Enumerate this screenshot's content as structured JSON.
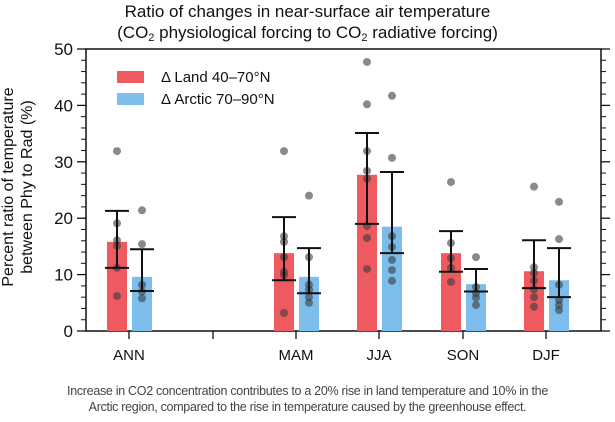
{
  "chart_data": {
    "type": "bar",
    "title_line1": "Ratio of changes in near-surface air temperature",
    "title_line2_parts": [
      "(CO",
      "2",
      " physiological forcing to CO",
      "2",
      " radiative forcing)"
    ],
    "title": "Ratio of changes in near-surface air temperature (CO2 physiological forcing to CO2 radiative forcing)",
    "ylabel_line1": "Percent ratio of temperature",
    "ylabel_line2": "between Phy to Rad (%)",
    "xlabel": "",
    "ylim": [
      0,
      50
    ],
    "yticks": [
      0,
      10,
      20,
      30,
      40,
      50
    ],
    "yminor_step": 2,
    "grid": false,
    "legend_position": "top-left",
    "categories": [
      "ANN",
      "",
      "MAM",
      "JJA",
      "SON",
      "DJF"
    ],
    "series": [
      {
        "name": "Δ Land 40–70°N",
        "color": "#EE5A60",
        "values": [
          15.8,
          null,
          13.8,
          27.7,
          13.8,
          10.6
        ],
        "error_low": [
          11.2,
          null,
          9.0,
          19.0,
          10.5,
          7.6
        ],
        "error_high": [
          21.3,
          null,
          20.2,
          35.1,
          17.7,
          16.1
        ],
        "points": [
          [
            31.9,
            19.1,
            16.1,
            15.1,
            11.2,
            6.2
          ],
          [],
          [
            31.9,
            16.8,
            15.8,
            13.1,
            10.5,
            9.9,
            3.2
          ],
          [
            47.7,
            40.2,
            31.9,
            28.4,
            27.0,
            18.6,
            16.5,
            11.0
          ],
          [
            26.4,
            15.6,
            12.9,
            11.2,
            8.7
          ],
          [
            25.6,
            11.3,
            10.3,
            8.9,
            7.4,
            6.0,
            4.3
          ]
        ]
      },
      {
        "name": "Δ Arctic 70–90°N",
        "color": "#7CBDEB",
        "values": [
          9.6,
          null,
          9.6,
          18.5,
          8.3,
          9.0
        ],
        "error_low": [
          7.1,
          null,
          6.7,
          13.8,
          7.0,
          6.0
        ],
        "error_high": [
          14.5,
          null,
          14.7,
          28.2,
          11.0,
          14.7
        ],
        "points": [
          [
            21.4,
            15.4,
            8.2,
            7.0,
            5.8
          ],
          [],
          [
            24.0,
            13.1,
            8.2,
            7.3,
            6.0,
            5.0
          ],
          [
            41.7,
            30.7,
            16.8,
            14.9,
            12.6,
            10.8,
            8.9
          ],
          [
            13.1,
            7.8,
            6.7,
            5.9,
            4.6
          ],
          [
            22.9,
            16.3,
            8.2,
            5.5,
            4.6,
            3.7
          ]
        ]
      }
    ],
    "point_color": "#3c3c3c"
  },
  "caption": {
    "line1": "Increase in CO2 concentration contributes to a 20% rise in land temperature and 10% in the",
    "line2": "Arctic region, compared to the rise in temperature caused by the greenhouse effect."
  }
}
